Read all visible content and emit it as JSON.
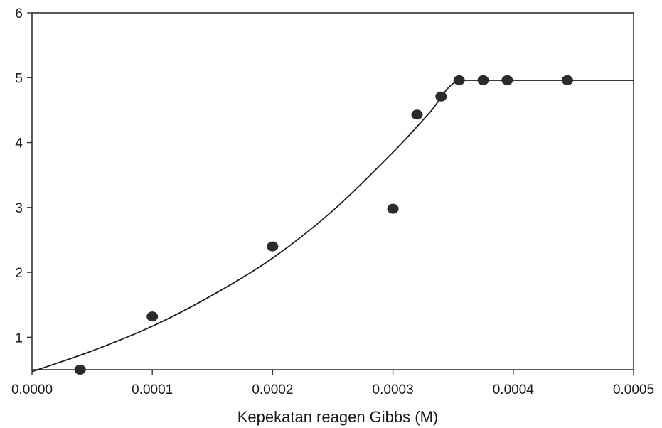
{
  "chart_data": {
    "type": "scatter",
    "title": "",
    "xlabel": "Kepekatan reagen Gibbs (M)",
    "ylabel": "",
    "xlim": [
      0,
      0.0005
    ],
    "ylim": [
      0.5,
      6
    ],
    "xticks": [
      0,
      0.0001,
      0.0002,
      0.0003,
      0.0004,
      0.0005
    ],
    "xtick_labels": [
      "0.0000",
      "0.0001",
      "0.0002",
      "0.0003",
      "0.0004",
      "0.0005"
    ],
    "yticks": [
      1,
      2,
      3,
      4,
      5,
      6
    ],
    "ytick_labels": [
      "1",
      "2",
      "3",
      "4",
      "5",
      "6"
    ],
    "grid": false,
    "legend": "none",
    "series": [
      {
        "kind": "points",
        "x": [
          4e-05,
          0.0001,
          0.0002,
          0.0003,
          0.00032,
          0.00034,
          0.000355,
          0.000375,
          0.000395,
          0.000445
        ],
        "y": [
          0.5,
          1.32,
          2.4,
          2.98,
          4.43,
          4.71,
          4.96,
          4.96,
          4.96,
          4.96
        ]
      },
      {
        "kind": "fit-line",
        "x": [
          0,
          5e-05,
          0.0001,
          0.00015,
          0.0002,
          0.00025,
          0.0003,
          0.00033,
          0.000355,
          0.0004,
          0.0005
        ],
        "y": [
          0.47,
          0.79,
          1.17,
          1.65,
          2.22,
          2.95,
          3.85,
          4.45,
          4.96,
          4.96,
          4.96
        ]
      }
    ],
    "colors": {
      "marker": "#2b2b2b",
      "line": "#1e1e1e",
      "axis": "#333333"
    }
  }
}
